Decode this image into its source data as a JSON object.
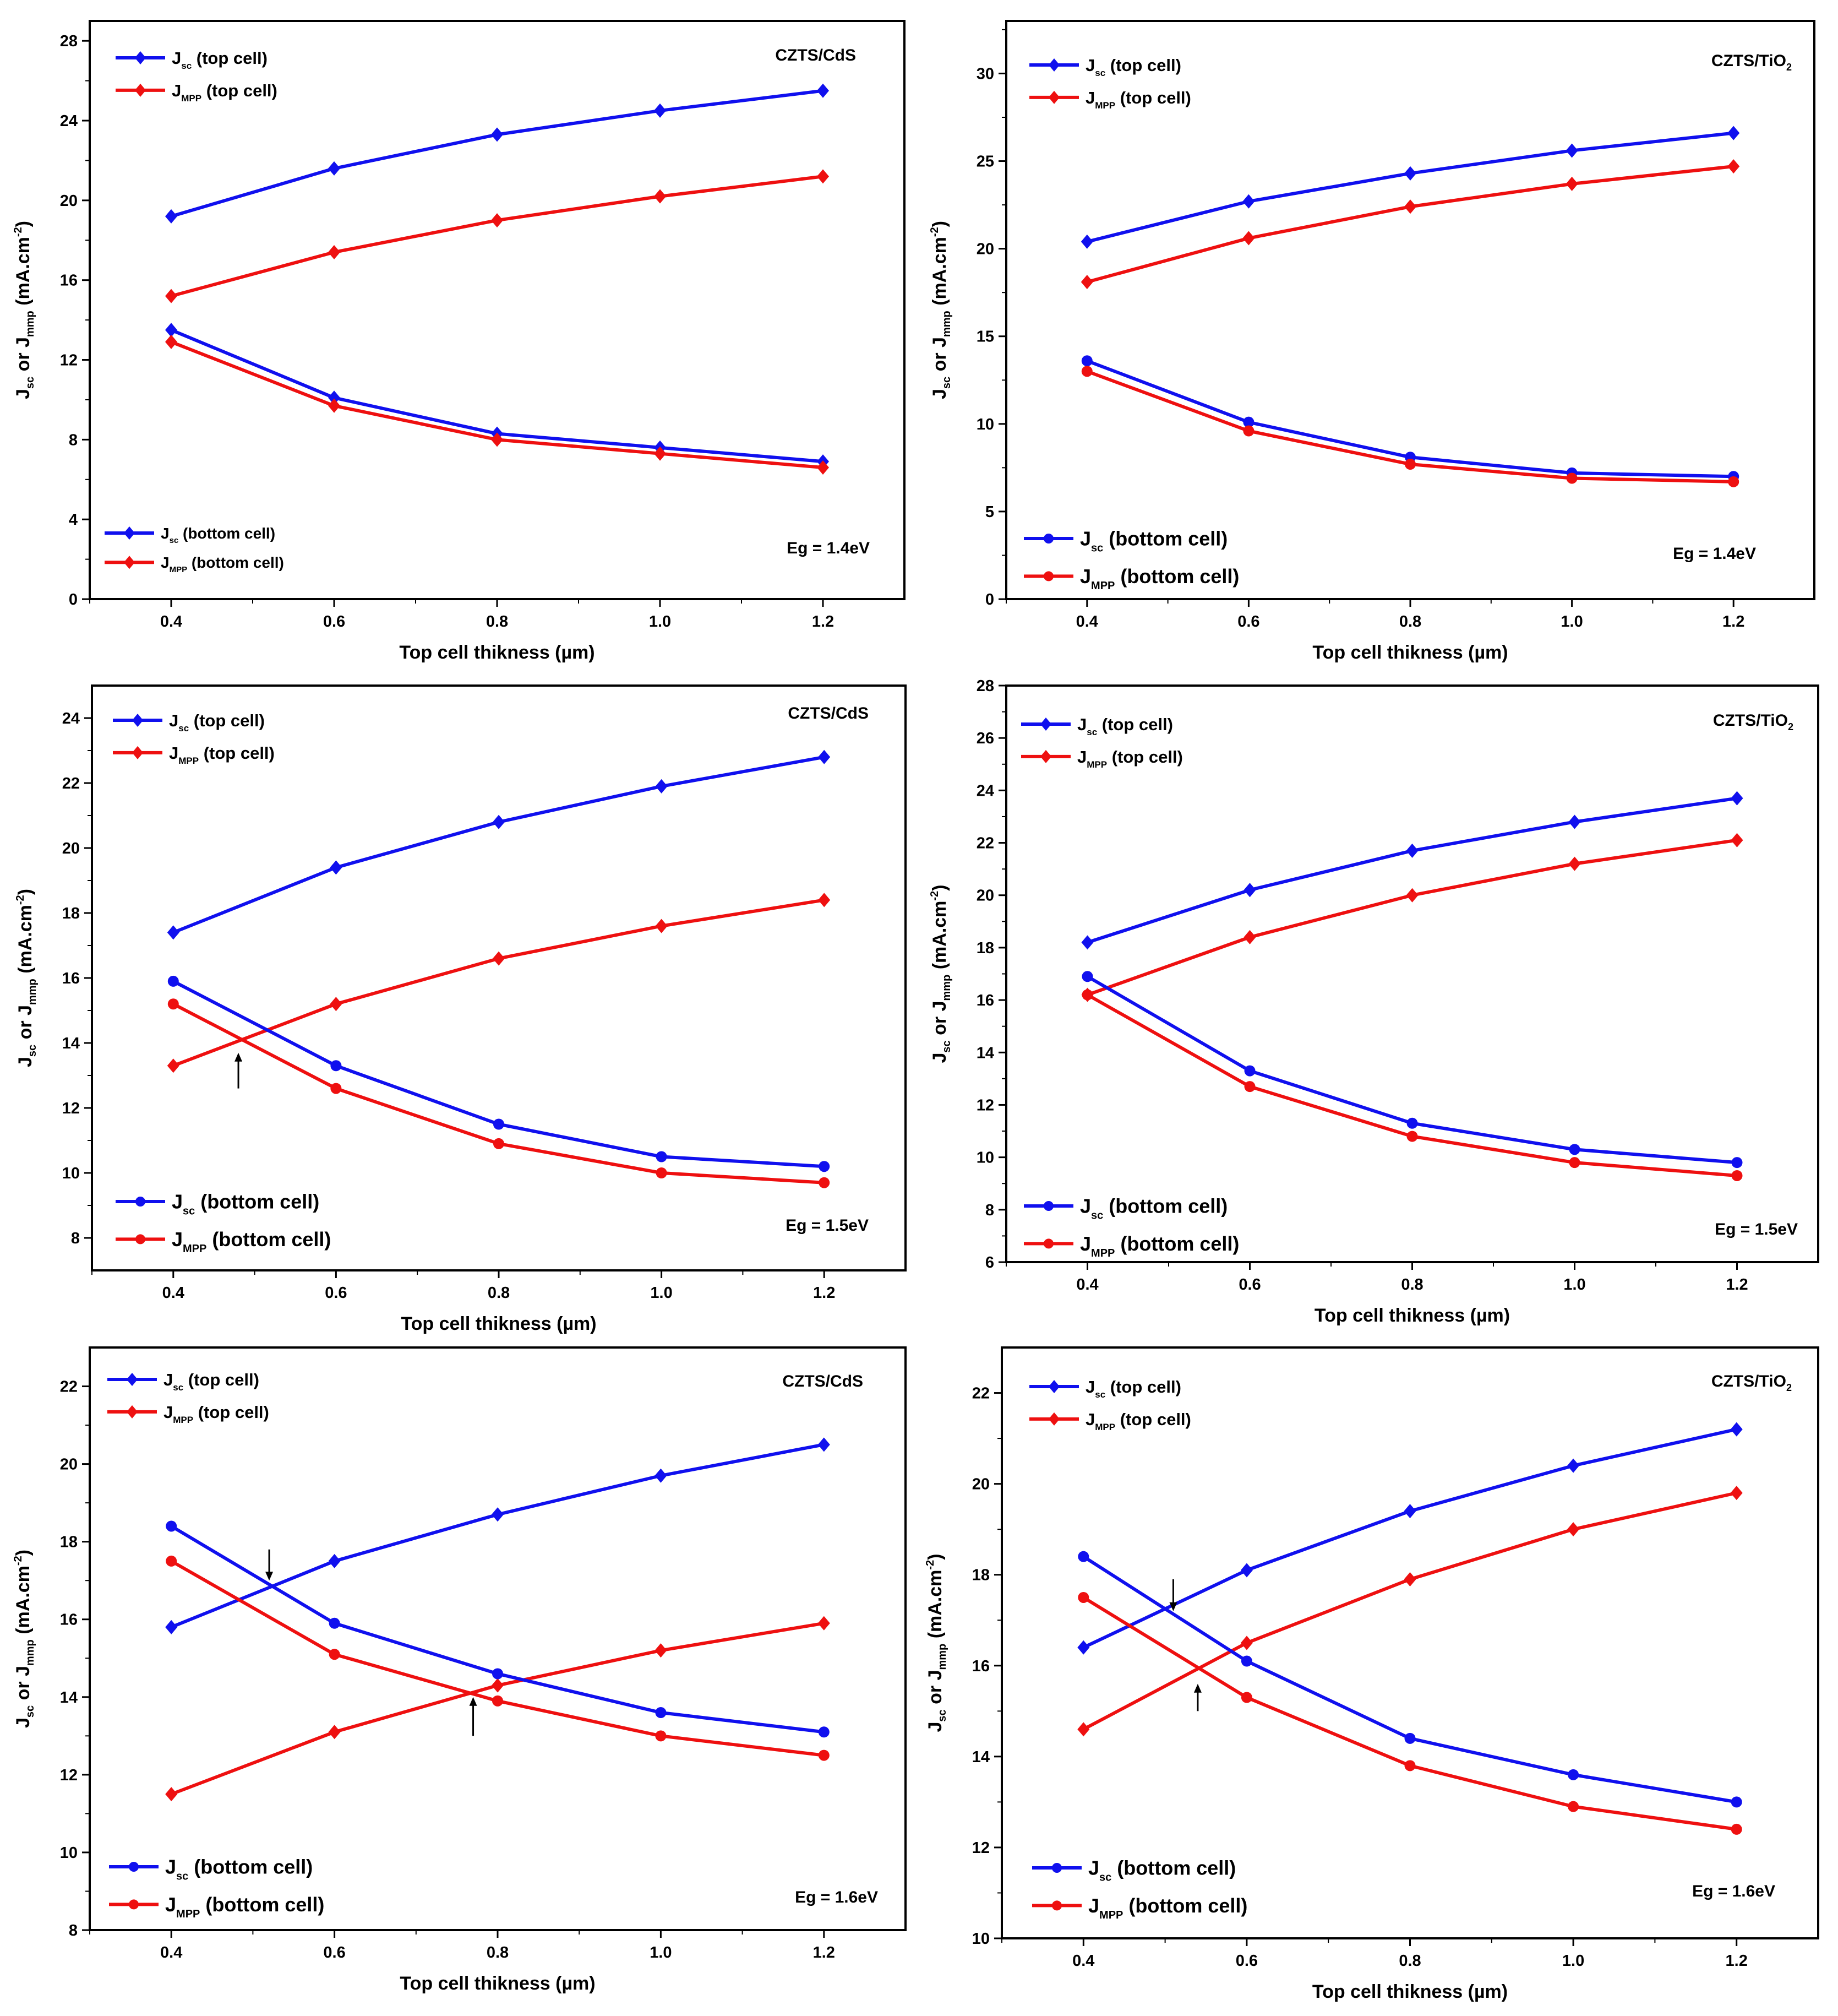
{
  "figure": {
    "colors": {
      "blue": "#1010ee",
      "red": "#ee1010",
      "axis": "#000000"
    },
    "panel_order": [
      "top-left",
      "top-right",
      "middle-left",
      "middle-right",
      "bottom-left",
      "bottom-right"
    ]
  },
  "chart_data": [
    {
      "id": "p1",
      "type": "line",
      "title": "CZTS/CdS",
      "eg_label": "Eg = 1.4eV",
      "xlabel": "Top cell thikness (µm)",
      "ylabel": "J sc or J mmp (mA.cm-2)",
      "xlim": [
        0.3,
        1.3
      ],
      "ylim": [
        0,
        29
      ],
      "xticks": [
        0.4,
        0.6,
        0.8,
        1.0,
        1.2
      ],
      "xtick_labels": [
        "0.4",
        "0.6",
        "0.8",
        "1.0",
        "1.2"
      ],
      "yticks": [
        0,
        4,
        8,
        12,
        16,
        20,
        24,
        28
      ],
      "x": [
        0.4,
        0.6,
        0.8,
        1.0,
        1.2
      ],
      "legend_top": {
        "sc_main": "J",
        "sc_sub": "sc",
        "sc_suffix": "(top cell)",
        "mpp_main": "J",
        "mpp_sub": "MPP",
        "mpp_suffix": "(top cell)"
      },
      "legend_bottom": {
        "sc_main": "J",
        "sc_sub": "sc",
        "sc_suffix": "(bottom cell)",
        "mpp_main": "J",
        "mpp_sub": "MPP",
        "mpp_suffix": "(bottom cell)"
      },
      "series": [
        {
          "name": "Jsc (top cell)",
          "color": "blue",
          "marker": "diamond",
          "values": [
            19.2,
            21.6,
            23.3,
            24.5,
            25.5
          ]
        },
        {
          "name": "JMPP (top cell)",
          "color": "red",
          "marker": "diamond",
          "values": [
            15.2,
            17.4,
            19.0,
            20.2,
            21.2
          ]
        },
        {
          "name": "Jsc (bottom cell)",
          "color": "blue",
          "marker": "diamond",
          "values": [
            13.5,
            10.1,
            8.3,
            7.6,
            6.9
          ]
        },
        {
          "name": "JMPP (bottom cell)",
          "color": "red",
          "marker": "diamond",
          "values": [
            12.9,
            9.7,
            8.0,
            7.3,
            6.6
          ]
        }
      ],
      "arrows": []
    },
    {
      "id": "p2",
      "type": "line",
      "title": "CZTS/TiO2",
      "eg_label": "Eg = 1.4eV",
      "xlabel": "Top cell thikness (µm)",
      "ylabel": "J sc or J mmp (mA.cm-2)",
      "xlim": [
        0.3,
        1.3
      ],
      "ylim": [
        0,
        33
      ],
      "xticks": [
        0.4,
        0.6,
        0.8,
        1.0,
        1.2
      ],
      "xtick_labels": [
        "0.4",
        "0.6",
        "0.8",
        "1.0",
        "1.2"
      ],
      "yticks": [
        0,
        5,
        10,
        15,
        20,
        25,
        30
      ],
      "x": [
        0.4,
        0.6,
        0.8,
        1.0,
        1.2
      ],
      "legend_top": {
        "sc_main": "J",
        "sc_sub": "sc",
        "sc_suffix": "(top cell)",
        "mpp_main": "J",
        "mpp_sub": "MPP",
        "mpp_suffix": "(top cell)"
      },
      "legend_bottom": {
        "sc_main": "J",
        "sc_sub": "sc",
        "sc_suffix": "(bottom cell)",
        "mpp_main": "J",
        "mpp_sub": "MPP",
        "mpp_suffix": "(bottom cell)"
      },
      "series": [
        {
          "name": "Jsc (top cell)",
          "color": "blue",
          "marker": "diamond",
          "values": [
            20.4,
            22.7,
            24.3,
            25.6,
            26.6
          ]
        },
        {
          "name": "JMPP (top cell)",
          "color": "red",
          "marker": "diamond",
          "values": [
            18.1,
            20.6,
            22.4,
            23.7,
            24.7
          ]
        },
        {
          "name": "Jsc (bottom cell)",
          "color": "blue",
          "marker": "circle",
          "values": [
            13.6,
            10.1,
            8.1,
            7.2,
            7.0
          ]
        },
        {
          "name": "JMPP (bottom cell)",
          "color": "red",
          "marker": "circle",
          "values": [
            13.0,
            9.6,
            7.7,
            6.9,
            6.7
          ]
        }
      ],
      "arrows": []
    },
    {
      "id": "p3",
      "type": "line",
      "title": "CZTS/CdS",
      "eg_label": "Eg = 1.5eV",
      "xlabel": "Top cell thikness (µm)",
      "ylabel": "J sc or J mmp (mA.cm-2)",
      "xlim": [
        0.3,
        1.3
      ],
      "ylim": [
        7,
        25
      ],
      "xticks": [
        0.4,
        0.6,
        0.8,
        1.0,
        1.2
      ],
      "xtick_labels": [
        "0.4",
        "0.6",
        "0.8",
        "1.0",
        "1.2"
      ],
      "yticks": [
        8,
        10,
        12,
        14,
        16,
        18,
        20,
        22,
        24
      ],
      "x": [
        0.4,
        0.6,
        0.8,
        1.0,
        1.2
      ],
      "legend_top": {
        "sc_main": "J",
        "sc_sub": "sc",
        "sc_suffix": "(top cell)",
        "mpp_main": "J",
        "mpp_sub": "MPP",
        "mpp_suffix": "(top cell)"
      },
      "legend_bottom": {
        "sc_main": "J",
        "sc_sub": "sc",
        "sc_suffix": "(bottom cell)",
        "mpp_main": "J",
        "mpp_sub": "MPP",
        "mpp_suffix": "(bottom cell)"
      },
      "series": [
        {
          "name": "Jsc (top cell)",
          "color": "blue",
          "marker": "diamond",
          "values": [
            17.4,
            19.4,
            20.8,
            21.9,
            22.8
          ]
        },
        {
          "name": "JMPP (top cell)",
          "color": "red",
          "marker": "diamond",
          "values": [
            13.3,
            15.2,
            16.6,
            17.6,
            18.4
          ]
        },
        {
          "name": "Jsc (bottom cell)",
          "color": "blue",
          "marker": "circle",
          "values": [
            15.9,
            13.3,
            11.5,
            10.5,
            10.2
          ]
        },
        {
          "name": "JMPP (bottom cell)",
          "color": "red",
          "marker": "circle",
          "values": [
            15.2,
            12.6,
            10.9,
            10.0,
            9.7
          ]
        }
      ],
      "arrows": [
        {
          "x": 0.48,
          "y_tail": 12.6,
          "y_head": 13.7
        }
      ]
    },
    {
      "id": "p4",
      "type": "line",
      "title": "CZTS/TiO2",
      "eg_label": "Eg = 1.5eV",
      "xlabel": "Top cell thikness (µm)",
      "ylabel": "J sc or J mmp (mA.cm-2)",
      "xlim": [
        0.3,
        1.3
      ],
      "ylim": [
        6,
        28
      ],
      "xticks": [
        0.4,
        0.6,
        0.8,
        1.0,
        1.2
      ],
      "xtick_labels": [
        "0.4",
        "0.6",
        "0.8",
        "1.0",
        "1.2"
      ],
      "yticks": [
        6,
        8,
        10,
        12,
        14,
        16,
        18,
        20,
        22,
        24,
        26,
        28
      ],
      "x": [
        0.4,
        0.6,
        0.8,
        1.0,
        1.2
      ],
      "legend_top": {
        "sc_main": "J",
        "sc_sub": "sc",
        "sc_suffix": "(top cell)",
        "mpp_main": "J",
        "mpp_sub": "MPP",
        "mpp_suffix": "(top cell)"
      },
      "legend_bottom": {
        "sc_main": "J",
        "sc_sub": "sc",
        "sc_suffix": "(bottom cell)",
        "mpp_main": "J",
        "mpp_sub": "MPP",
        "mpp_suffix": "(bottom cell)"
      },
      "series": [
        {
          "name": "Jsc (top cell)",
          "color": "blue",
          "marker": "diamond",
          "values": [
            18.2,
            20.2,
            21.7,
            22.8,
            23.7
          ]
        },
        {
          "name": "JMPP (top cell)",
          "color": "red",
          "marker": "diamond",
          "values": [
            16.2,
            18.4,
            20.0,
            21.2,
            22.1
          ]
        },
        {
          "name": "Jsc (bottom cell)",
          "color": "blue",
          "marker": "circle",
          "values": [
            16.9,
            13.3,
            11.3,
            10.3,
            9.8
          ]
        },
        {
          "name": "JMPP (bottom cell)",
          "color": "red",
          "marker": "circle",
          "values": [
            16.2,
            12.7,
            10.8,
            9.8,
            9.3
          ]
        }
      ],
      "arrows": []
    },
    {
      "id": "p5",
      "type": "line",
      "title": "CZTS/CdS",
      "eg_label": "Eg = 1.6eV",
      "xlabel": "Top cell thikness (µm)",
      "ylabel": "J sc or J mmp (mA.cm-2)",
      "xlim": [
        0.3,
        1.3
      ],
      "ylim": [
        8,
        23
      ],
      "xticks": [
        0.4,
        0.6,
        0.8,
        1.0,
        1.2
      ],
      "xtick_labels": [
        "0.4",
        "0.6",
        "0.8",
        "1.0",
        "1.2"
      ],
      "yticks": [
        8,
        10,
        12,
        14,
        16,
        18,
        20,
        22
      ],
      "x": [
        0.4,
        0.6,
        0.8,
        1.0,
        1.2
      ],
      "legend_top": {
        "sc_main": "J",
        "sc_sub": "sc",
        "sc_suffix": "(top cell)",
        "mpp_main": "J",
        "mpp_sub": "MPP",
        "mpp_suffix": "(top cell)"
      },
      "legend_bottom": {
        "sc_main": "J",
        "sc_sub": "sc",
        "sc_suffix": "(bottom cell)",
        "mpp_main": "J",
        "mpp_sub": "MPP",
        "mpp_suffix": "(bottom cell)"
      },
      "series": [
        {
          "name": "Jsc (top cell)",
          "color": "blue",
          "marker": "diamond",
          "values": [
            15.8,
            17.5,
            18.7,
            19.7,
            20.5
          ]
        },
        {
          "name": "JMPP (top cell)",
          "color": "red",
          "marker": "diamond",
          "values": [
            11.5,
            13.1,
            14.3,
            15.2,
            15.9
          ]
        },
        {
          "name": "Jsc (bottom cell)",
          "color": "blue",
          "marker": "circle",
          "values": [
            18.4,
            15.9,
            14.6,
            13.6,
            13.1
          ]
        },
        {
          "name": "JMPP (bottom cell)",
          "color": "red",
          "marker": "circle",
          "values": [
            17.5,
            15.1,
            13.9,
            13.0,
            12.5
          ]
        }
      ],
      "arrows": [
        {
          "x": 0.52,
          "y_tail": 17.8,
          "y_head": 17.0
        },
        {
          "x": 0.77,
          "y_tail": 13.0,
          "y_head": 14.0
        }
      ]
    },
    {
      "id": "p6",
      "type": "line",
      "title": "CZTS/TiO2",
      "eg_label": "Eg = 1.6eV",
      "xlabel": "Top cell thikness (µm)",
      "ylabel": "J sc or J mmp (mA.cm-2)",
      "xlim": [
        0.3,
        1.3
      ],
      "ylim": [
        10,
        23
      ],
      "xticks": [
        0.4,
        0.6,
        0.8,
        1.0,
        1.2
      ],
      "xtick_labels": [
        "0.4",
        "0.6",
        "0.8",
        "1.0",
        "1.2"
      ],
      "yticks": [
        10,
        12,
        14,
        16,
        18,
        20,
        22
      ],
      "x": [
        0.4,
        0.6,
        0.8,
        1.0,
        1.2
      ],
      "legend_top": {
        "sc_main": "J",
        "sc_sub": "sc",
        "sc_suffix": "(top cell)",
        "mpp_main": "J",
        "mpp_sub": "MPP",
        "mpp_suffix": "(top cell)"
      },
      "legend_bottom": {
        "sc_main": "J",
        "sc_sub": "sc",
        "sc_suffix": "(bottom cell)",
        "mpp_main": "J",
        "mpp_sub": "MPP",
        "mpp_suffix": "(bottom cell)"
      },
      "series": [
        {
          "name": "Jsc (top cell)",
          "color": "blue",
          "marker": "diamond",
          "values": [
            16.4,
            18.1,
            19.4,
            20.4,
            21.2
          ]
        },
        {
          "name": "JMPP (top cell)",
          "color": "red",
          "marker": "diamond",
          "values": [
            14.6,
            16.5,
            17.9,
            19.0,
            19.8
          ]
        },
        {
          "name": "Jsc (bottom cell)",
          "color": "blue",
          "marker": "circle",
          "values": [
            18.4,
            16.1,
            14.4,
            13.6,
            13.0
          ]
        },
        {
          "name": "JMPP (bottom cell)",
          "color": "red",
          "marker": "circle",
          "values": [
            17.5,
            15.3,
            13.8,
            12.9,
            12.4
          ]
        }
      ],
      "arrows": [
        {
          "x": 0.51,
          "y_tail": 17.9,
          "y_head": 17.2
        },
        {
          "x": 0.54,
          "y_tail": 15.0,
          "y_head": 15.6
        }
      ]
    }
  ]
}
